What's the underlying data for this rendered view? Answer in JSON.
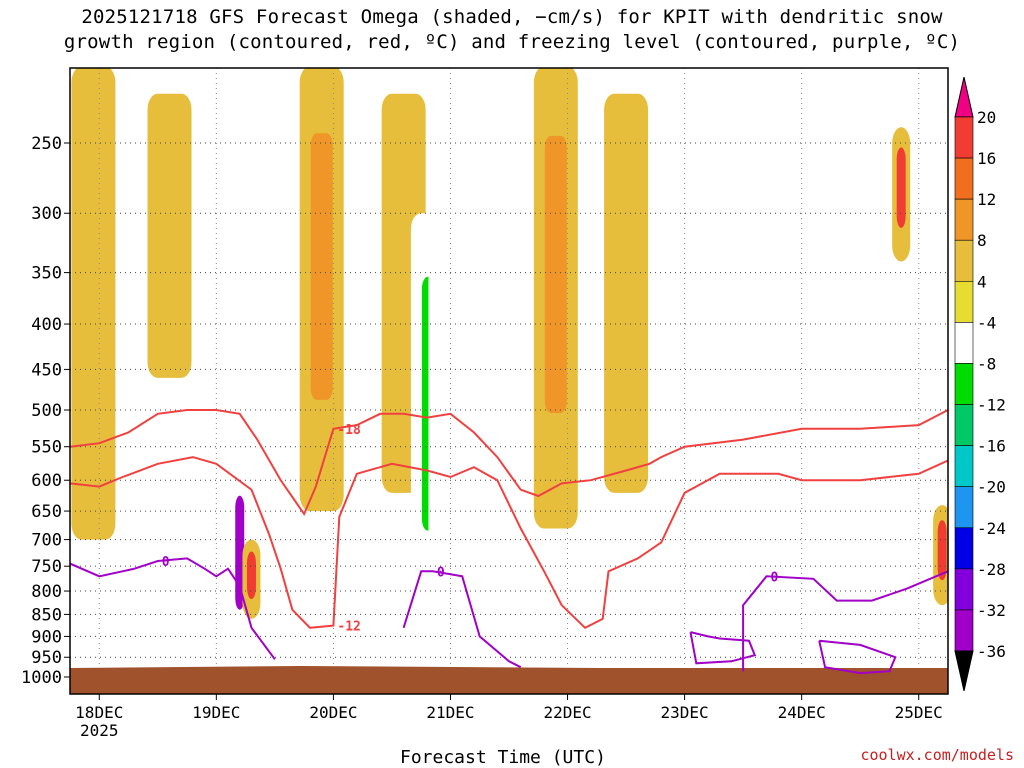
{
  "chart_data": {
    "type": "heatmap",
    "title": "2025121718 GFS Forecast Omega (shaded, −cm/s) for KPIT with dendritic snow",
    "subtitle": "growth region (contoured, red, ºC) and freezing level (contoured, purple, ºC)",
    "xlabel": "Forecast Time (UTC)",
    "ylabel": "",
    "credit": "coolwx.com/models",
    "x_ticks": [
      {
        "day": 0,
        "label": "18DEC",
        "sublabel": "2025"
      },
      {
        "day": 1,
        "label": "19DEC"
      },
      {
        "day": 2,
        "label": "20DEC"
      },
      {
        "day": 3,
        "label": "21DEC"
      },
      {
        "day": 4,
        "label": "22DEC"
      },
      {
        "day": 5,
        "label": "23DEC"
      },
      {
        "day": 6,
        "label": "24DEC"
      },
      {
        "day": 7,
        "label": "25DEC"
      }
    ],
    "xlim_days": [
      -0.25,
      7.25
    ],
    "y_ticks": [
      250,
      300,
      350,
      400,
      450,
      500,
      550,
      600,
      650,
      700,
      750,
      800,
      850,
      900,
      950,
      1000
    ],
    "ylim_hpa": [
      1020,
      200
    ],
    "colorbar": {
      "labels": [
        "20",
        "16",
        "12",
        "8",
        "4",
        "-4",
        "-8",
        "-12",
        "-16",
        "-20",
        "-24",
        "-28",
        "-32",
        "-36"
      ],
      "colors": [
        "#f00082",
        "#f03c32",
        "#f06e1e",
        "#f09628",
        "#e6be3c",
        "#e6dc32",
        "#ffffff",
        "#00dc00",
        "#00c864",
        "#00c8c8",
        "#1e96f0",
        "#0000e6",
        "#8200dc",
        "#a000c8",
        "#aaaaaa",
        "#000000"
      ]
    },
    "contours": [
      {
        "name": "dendritic -18C",
        "color": "#f04040",
        "label": "-18",
        "points": [
          [
            -0.25,
            550
          ],
          [
            0,
            545
          ],
          [
            0.25,
            530
          ],
          [
            0.5,
            505
          ],
          [
            0.75,
            500
          ],
          [
            1,
            500
          ],
          [
            1.2,
            505
          ],
          [
            1.35,
            540
          ],
          [
            1.55,
            600
          ],
          [
            1.75,
            655
          ],
          [
            1.85,
            610
          ],
          [
            2,
            525
          ],
          [
            2.2,
            520
          ],
          [
            2.4,
            505
          ],
          [
            2.6,
            505
          ],
          [
            2.8,
            510
          ],
          [
            3,
            505
          ],
          [
            3.2,
            530
          ],
          [
            3.4,
            565
          ],
          [
            3.6,
            615
          ],
          [
            3.75,
            625
          ],
          [
            3.95,
            605
          ],
          [
            4.2,
            600
          ],
          [
            4.5,
            585
          ],
          [
            4.7,
            575
          ],
          [
            4.8,
            565
          ],
          [
            5,
            550
          ],
          [
            5.5,
            540
          ],
          [
            6,
            525
          ],
          [
            6.5,
            525
          ],
          [
            7,
            520
          ],
          [
            7.25,
            500
          ]
        ]
      },
      {
        "name": "dendritic -12C",
        "color": "#f04040",
        "label": "-12",
        "points": [
          [
            -0.25,
            605
          ],
          [
            0,
            610
          ],
          [
            0.2,
            595
          ],
          [
            0.5,
            575
          ],
          [
            0.8,
            565
          ],
          [
            1,
            575
          ],
          [
            1.3,
            615
          ],
          [
            1.45,
            690
          ],
          [
            1.55,
            755
          ],
          [
            1.65,
            840
          ],
          [
            1.8,
            880
          ],
          [
            2,
            875
          ],
          [
            2.05,
            660
          ],
          [
            2.2,
            590
          ],
          [
            2.5,
            575
          ],
          [
            2.8,
            585
          ],
          [
            3,
            595
          ],
          [
            3.2,
            580
          ],
          [
            3.4,
            600
          ],
          [
            3.6,
            680
          ],
          [
            3.8,
            760
          ],
          [
            3.95,
            830
          ],
          [
            4.15,
            880
          ],
          [
            4.3,
            860
          ],
          [
            4.35,
            760
          ],
          [
            4.6,
            735
          ],
          [
            4.8,
            705
          ],
          [
            5,
            620
          ],
          [
            5.3,
            590
          ],
          [
            5.8,
            590
          ],
          [
            6,
            600
          ],
          [
            6.5,
            600
          ],
          [
            7,
            590
          ],
          [
            7.25,
            570
          ]
        ]
      },
      {
        "name": "freezing level 0C",
        "color": "#a000c8",
        "label": "0",
        "points": [
          [
            -0.25,
            745
          ],
          [
            0,
            770
          ],
          [
            0.3,
            755
          ],
          [
            0.5,
            740
          ],
          [
            0.75,
            735
          ],
          [
            0.9,
            755
          ],
          [
            1,
            770
          ],
          [
            1.1,
            755
          ],
          [
            1.2,
            790
          ],
          [
            1.3,
            880
          ],
          [
            1.5,
            955
          ]
        ]
      },
      {
        "name": "freezing level 0C (21Dec)",
        "color": "#a000c8",
        "label": "0",
        "points": [
          [
            2.6,
            880
          ],
          [
            2.75,
            760
          ],
          [
            2.85,
            760
          ],
          [
            3.1,
            770
          ],
          [
            3.25,
            900
          ],
          [
            3.5,
            960
          ],
          [
            3.6,
            975
          ]
        ]
      },
      {
        "name": "freezing level 0C (23-25Dec)",
        "color": "#a000c8",
        "label": "0",
        "points": [
          [
            5.5,
            985
          ],
          [
            5.5,
            830
          ],
          [
            5.7,
            770
          ],
          [
            6.1,
            775
          ],
          [
            6.3,
            820
          ],
          [
            6.6,
            820
          ],
          [
            6.9,
            795
          ],
          [
            7.25,
            760
          ]
        ]
      },
      {
        "name": "freezing level 0C (23Dec cell)",
        "color": "#a000c8",
        "label": "",
        "points": [
          [
            5.05,
            890
          ],
          [
            5.1,
            965
          ],
          [
            5.4,
            960
          ],
          [
            5.6,
            945
          ],
          [
            5.55,
            910
          ],
          [
            5.3,
            905
          ],
          [
            5.2,
            900
          ],
          [
            5.05,
            890
          ]
        ]
      },
      {
        "name": "freezing level 0C (24Dec cell)",
        "color": "#a000c8",
        "label": "",
        "points": [
          [
            6.15,
            910
          ],
          [
            6.2,
            975
          ],
          [
            6.5,
            990
          ],
          [
            6.75,
            985
          ],
          [
            6.8,
            950
          ],
          [
            6.5,
            920
          ],
          [
            6.15,
            910
          ]
        ]
      }
    ],
    "omega_shading": [
      {
        "day": -0.05,
        "p_top": 200,
        "p_bot": 700,
        "value": 6
      },
      {
        "day": 0.6,
        "p_top": 220,
        "p_bot": 460,
        "value": 6
      },
      {
        "day": 1.0,
        "p_top": 200,
        "p_bot": 940,
        "value": -8
      },
      {
        "day": 1.2,
        "p_top": 580,
        "p_bot": 950,
        "value": -36
      },
      {
        "day": 1.3,
        "p_top": 700,
        "p_bot": 860,
        "value": 16
      },
      {
        "day": 1.9,
        "p_top": 200,
        "p_bot": 650,
        "value": 8
      },
      {
        "day": 2.6,
        "p_top": 220,
        "p_bot": 620,
        "value": 6
      },
      {
        "day": 2.85,
        "p_top": 300,
        "p_bot": 900,
        "value": -12
      },
      {
        "day": 3.0,
        "p_top": 200,
        "p_bot": 930,
        "value": -8
      },
      {
        "day": 3.9,
        "p_top": 200,
        "p_bot": 680,
        "value": 10
      },
      {
        "day": 4.5,
        "p_top": 220,
        "p_bot": 620,
        "value": 6
      },
      {
        "day": 5.05,
        "p_top": 200,
        "p_bot": 900,
        "value": -8
      },
      {
        "day": 6.85,
        "p_top": 240,
        "p_bot": 340,
        "value": 16
      },
      {
        "day": 7.2,
        "p_top": 640,
        "p_bot": 830,
        "value": 16
      }
    ]
  }
}
